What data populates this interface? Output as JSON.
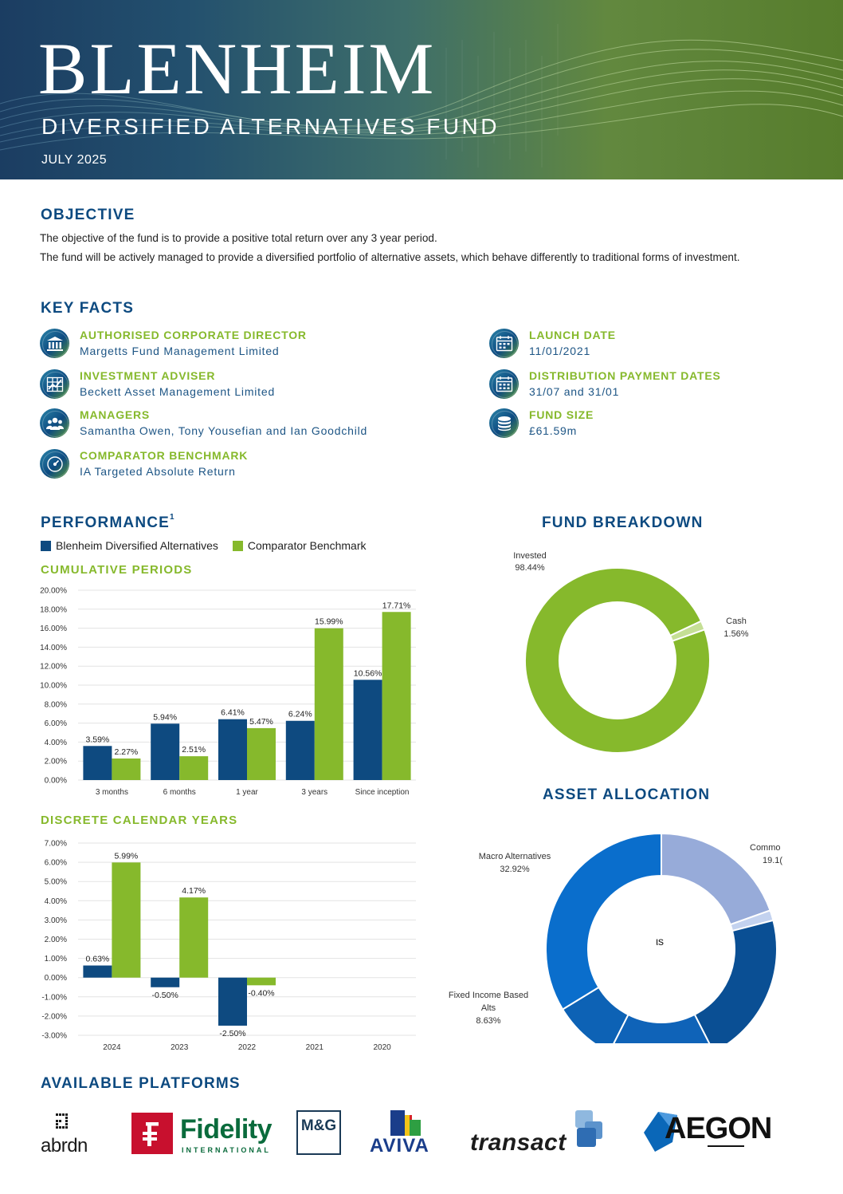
{
  "header": {
    "title": "BLENHEIM",
    "subtitle": "DIVERSIFIED ALTERNATIVES FUND",
    "date": "JULY 2025"
  },
  "objective": {
    "heading": "OBJECTIVE",
    "line1": "The objective of the fund is to provide a positive total return over any 3 year period.",
    "line2": "The fund will be actively managed to provide a diversified portfolio of alternative assets, which behave differently to traditional forms of investment."
  },
  "key_facts": {
    "heading": "KEY FACTS",
    "items": [
      {
        "label": "AUTHORISED CORPORATE DIRECTOR",
        "value": "Margetts Fund Management Limited",
        "icon": "bank-icon"
      },
      {
        "label": "INVESTMENT ADVISER",
        "value": "Beckett Asset Management Limited",
        "icon": "chart-grid-icon"
      },
      {
        "label": "MANAGERS",
        "value": "Samantha Owen, Tony Yousefian and Ian Goodchild",
        "icon": "people-icon"
      },
      {
        "label": "COMPARATOR BENCHMARK",
        "value": "IA Targeted Absolute Return",
        "icon": "gauge-icon"
      },
      {
        "label": "LAUNCH DATE",
        "value": "11/01/2021",
        "icon": "calendar-icon"
      },
      {
        "label": "DISTRIBUTION PAYMENT DATES",
        "value": "31/07 and 31/01",
        "icon": "calendar-icon"
      },
      {
        "label": "FUND SIZE",
        "value": "£61.59m",
        "icon": "coins-icon"
      }
    ]
  },
  "performance": {
    "heading": "PERFORMANCE",
    "footnote_mark": "1",
    "legend": [
      {
        "name": "Blenheim Diversified Alternatives",
        "color": "#0e4a80"
      },
      {
        "name": "Comparator Benchmark",
        "color": "#86b92c"
      }
    ],
    "cumulative_heading": "CUMULATIVE PERIODS",
    "discrete_heading": "DISCRETE CALENDAR YEARS"
  },
  "fund_breakdown": {
    "heading": "FUND BREAKDOWN"
  },
  "asset_allocation": {
    "heading": "ASSET ALLOCATION",
    "center_label": "ιs"
  },
  "platforms": {
    "heading": "AVAILABLE PLATFORMS",
    "names": [
      "abrdn",
      "Fidelity",
      "INTERNATIONAL",
      "M&G",
      "AVIVA",
      "transact",
      "AEGON"
    ]
  },
  "chart_data": [
    {
      "type": "bar",
      "title": "CUMULATIVE PERIODS",
      "categories": [
        "3 months",
        "6 months",
        "1 year",
        "3 years",
        "Since inception"
      ],
      "series": [
        {
          "name": "Blenheim Diversified Alternatives",
          "values": [
            3.59,
            5.94,
            6.41,
            6.24,
            10.56
          ],
          "labels": [
            "3.59%",
            "5.94%",
            "6.41%",
            "6.24%",
            "10.56%"
          ]
        },
        {
          "name": "Comparator Benchmark",
          "values": [
            2.27,
            2.51,
            5.47,
            15.99,
            17.71
          ],
          "labels": [
            "2.27%",
            "2.51%",
            "5.47%",
            "15.99%",
            "17.71%"
          ]
        }
      ],
      "ylim": [
        0,
        20
      ],
      "yticks": [
        "0.00%",
        "2.00%",
        "4.00%",
        "6.00%",
        "8.00%",
        "10.00%",
        "12.00%",
        "14.00%",
        "16.00%",
        "18.00%",
        "20.00%"
      ],
      "grid": true
    },
    {
      "type": "bar",
      "title": "DISCRETE CALENDAR YEARS",
      "categories": [
        "2024",
        "2023",
        "2022",
        "2021",
        "2020"
      ],
      "series": [
        {
          "name": "Blenheim Diversified Alternatives",
          "values": [
            0.63,
            -0.5,
            -2.5,
            null,
            null
          ],
          "labels": [
            "0.63%",
            "-0.50%",
            "-2.50%",
            "",
            ""
          ]
        },
        {
          "name": "Comparator Benchmark",
          "values": [
            5.99,
            4.17,
            -0.4,
            null,
            null
          ],
          "labels": [
            "5.99%",
            "4.17%",
            "-0.40%",
            "",
            ""
          ]
        }
      ],
      "ylim": [
        -3,
        7
      ],
      "yticks": [
        "-3.00%",
        "-2.00%",
        "-1.00%",
        "0.00%",
        "1.00%",
        "2.00%",
        "3.00%",
        "4.00%",
        "5.00%",
        "6.00%",
        "7.00%"
      ],
      "grid": true
    },
    {
      "type": "pie",
      "title": "FUND BREAKDOWN",
      "donut": true,
      "slices": [
        {
          "label": "Invested",
          "value": 98.44,
          "text": "98.44%",
          "color": "#86b92c"
        },
        {
          "label": "Cash",
          "value": 1.56,
          "text": "1.56%",
          "color": "#c5df95"
        }
      ]
    },
    {
      "type": "pie",
      "title": "ASSET ALLOCATION",
      "donut": true,
      "partially_cropped": true,
      "slices": [
        {
          "label": "Commo",
          "value": 19.1,
          "text": "19.1(",
          "color": "#97abd9"
        },
        {
          "label": "",
          "value": 1.4,
          "text": "",
          "color": "#c3d2ef"
        },
        {
          "label": "",
          "value": 21.0,
          "text": "",
          "color": "#0a4f94"
        },
        {
          "label": "",
          "value": 14.6,
          "text": "",
          "color": "#0f63b8"
        },
        {
          "label": "Fixed Income Based Alts",
          "value": 8.63,
          "text": "8.63%",
          "color": "#0d62b5"
        },
        {
          "label": "Macro Alternatives",
          "value": 32.92,
          "text": "32.92%",
          "color": "#0a6ecc"
        }
      ]
    }
  ]
}
